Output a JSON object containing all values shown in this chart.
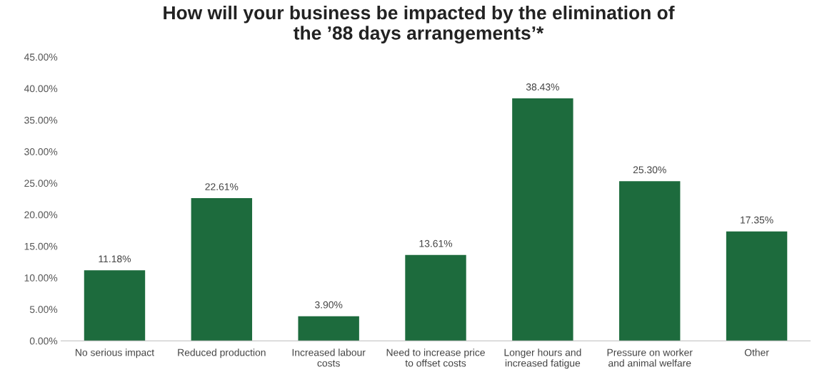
{
  "chart_data": {
    "type": "bar",
    "title": "How will your business be impacted by the elimination of\nthe ’88 days arrangements’*",
    "categories": [
      "No serious impact",
      "Reduced production",
      "Increased labour\ncosts",
      "Need to increase price\nto offset costs",
      "Longer hours and\nincreased fatigue",
      "Pressure on worker\nand animal welfare",
      "Other"
    ],
    "values": [
      11.18,
      22.61,
      3.9,
      13.61,
      38.43,
      25.3,
      17.35
    ],
    "value_labels": [
      "11.18%",
      "22.61%",
      "3.90%",
      "13.61%",
      "38.43%",
      "25.30%",
      "17.35%"
    ],
    "color": "#1d6b3d",
    "ylim": [
      0,
      45
    ],
    "yticks": [
      {
        "value": 0,
        "label": "0.00%"
      },
      {
        "value": 5,
        "label": "5.00%"
      },
      {
        "value": 10,
        "label": "10.00%"
      },
      {
        "value": 15,
        "label": "15.00%"
      },
      {
        "value": 20,
        "label": "20.00%"
      },
      {
        "value": 25,
        "label": "25.00%"
      },
      {
        "value": 30,
        "label": "30.00%"
      },
      {
        "value": 35,
        "label": "35.00%"
      },
      {
        "value": 40,
        "label": "40.00%"
      },
      {
        "value": 45,
        "label": "45.00%"
      }
    ],
    "grid": false,
    "legend": false
  }
}
